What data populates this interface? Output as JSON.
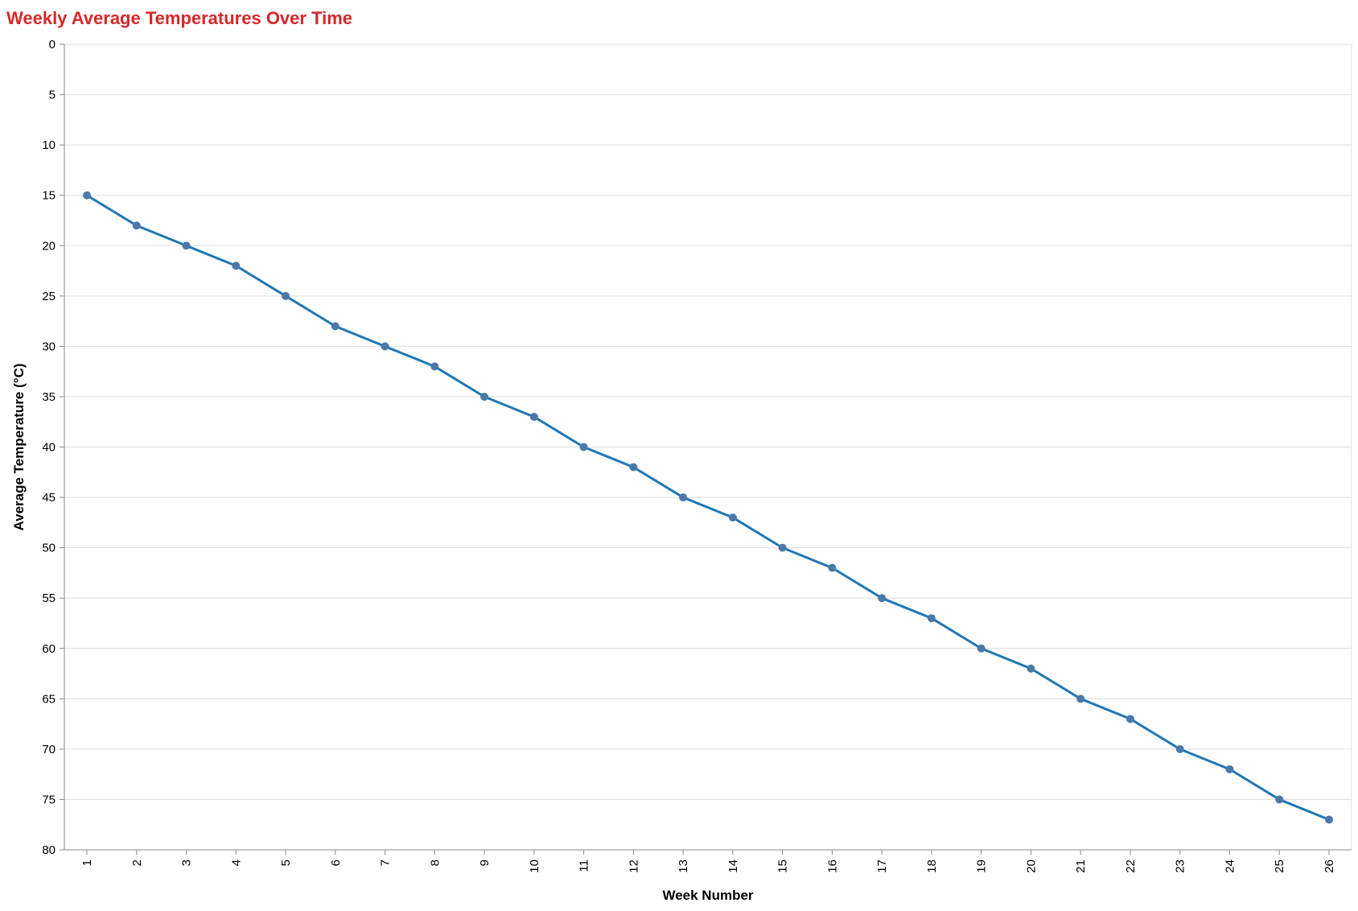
{
  "chart_data": {
    "type": "line",
    "title": "Weekly Average Temperatures Over Time",
    "xlabel": "Week Number",
    "ylabel": "Average Temperature (°C)",
    "y_reversed": true,
    "ylim": [
      0,
      80
    ],
    "y_ticks": [
      0,
      5,
      10,
      15,
      20,
      25,
      30,
      35,
      40,
      45,
      50,
      55,
      60,
      65,
      70,
      75,
      80
    ],
    "grid": true,
    "x": [
      1,
      2,
      3,
      4,
      5,
      6,
      7,
      8,
      9,
      10,
      11,
      12,
      13,
      14,
      15,
      16,
      17,
      18,
      19,
      20,
      21,
      22,
      23,
      24,
      25,
      26
    ],
    "series": [
      {
        "values": [
          15,
          18,
          20,
          22,
          25,
          28,
          30,
          32,
          35,
          37,
          40,
          42,
          45,
          47,
          50,
          52,
          55,
          57,
          60,
          62,
          65,
          67,
          70,
          72,
          75,
          77
        ]
      }
    ],
    "colors": {
      "title": "#d62728",
      "line": "#1f77b4",
      "point": "#4c78a8",
      "grid": "#dddddd",
      "axis": "#888888"
    }
  }
}
